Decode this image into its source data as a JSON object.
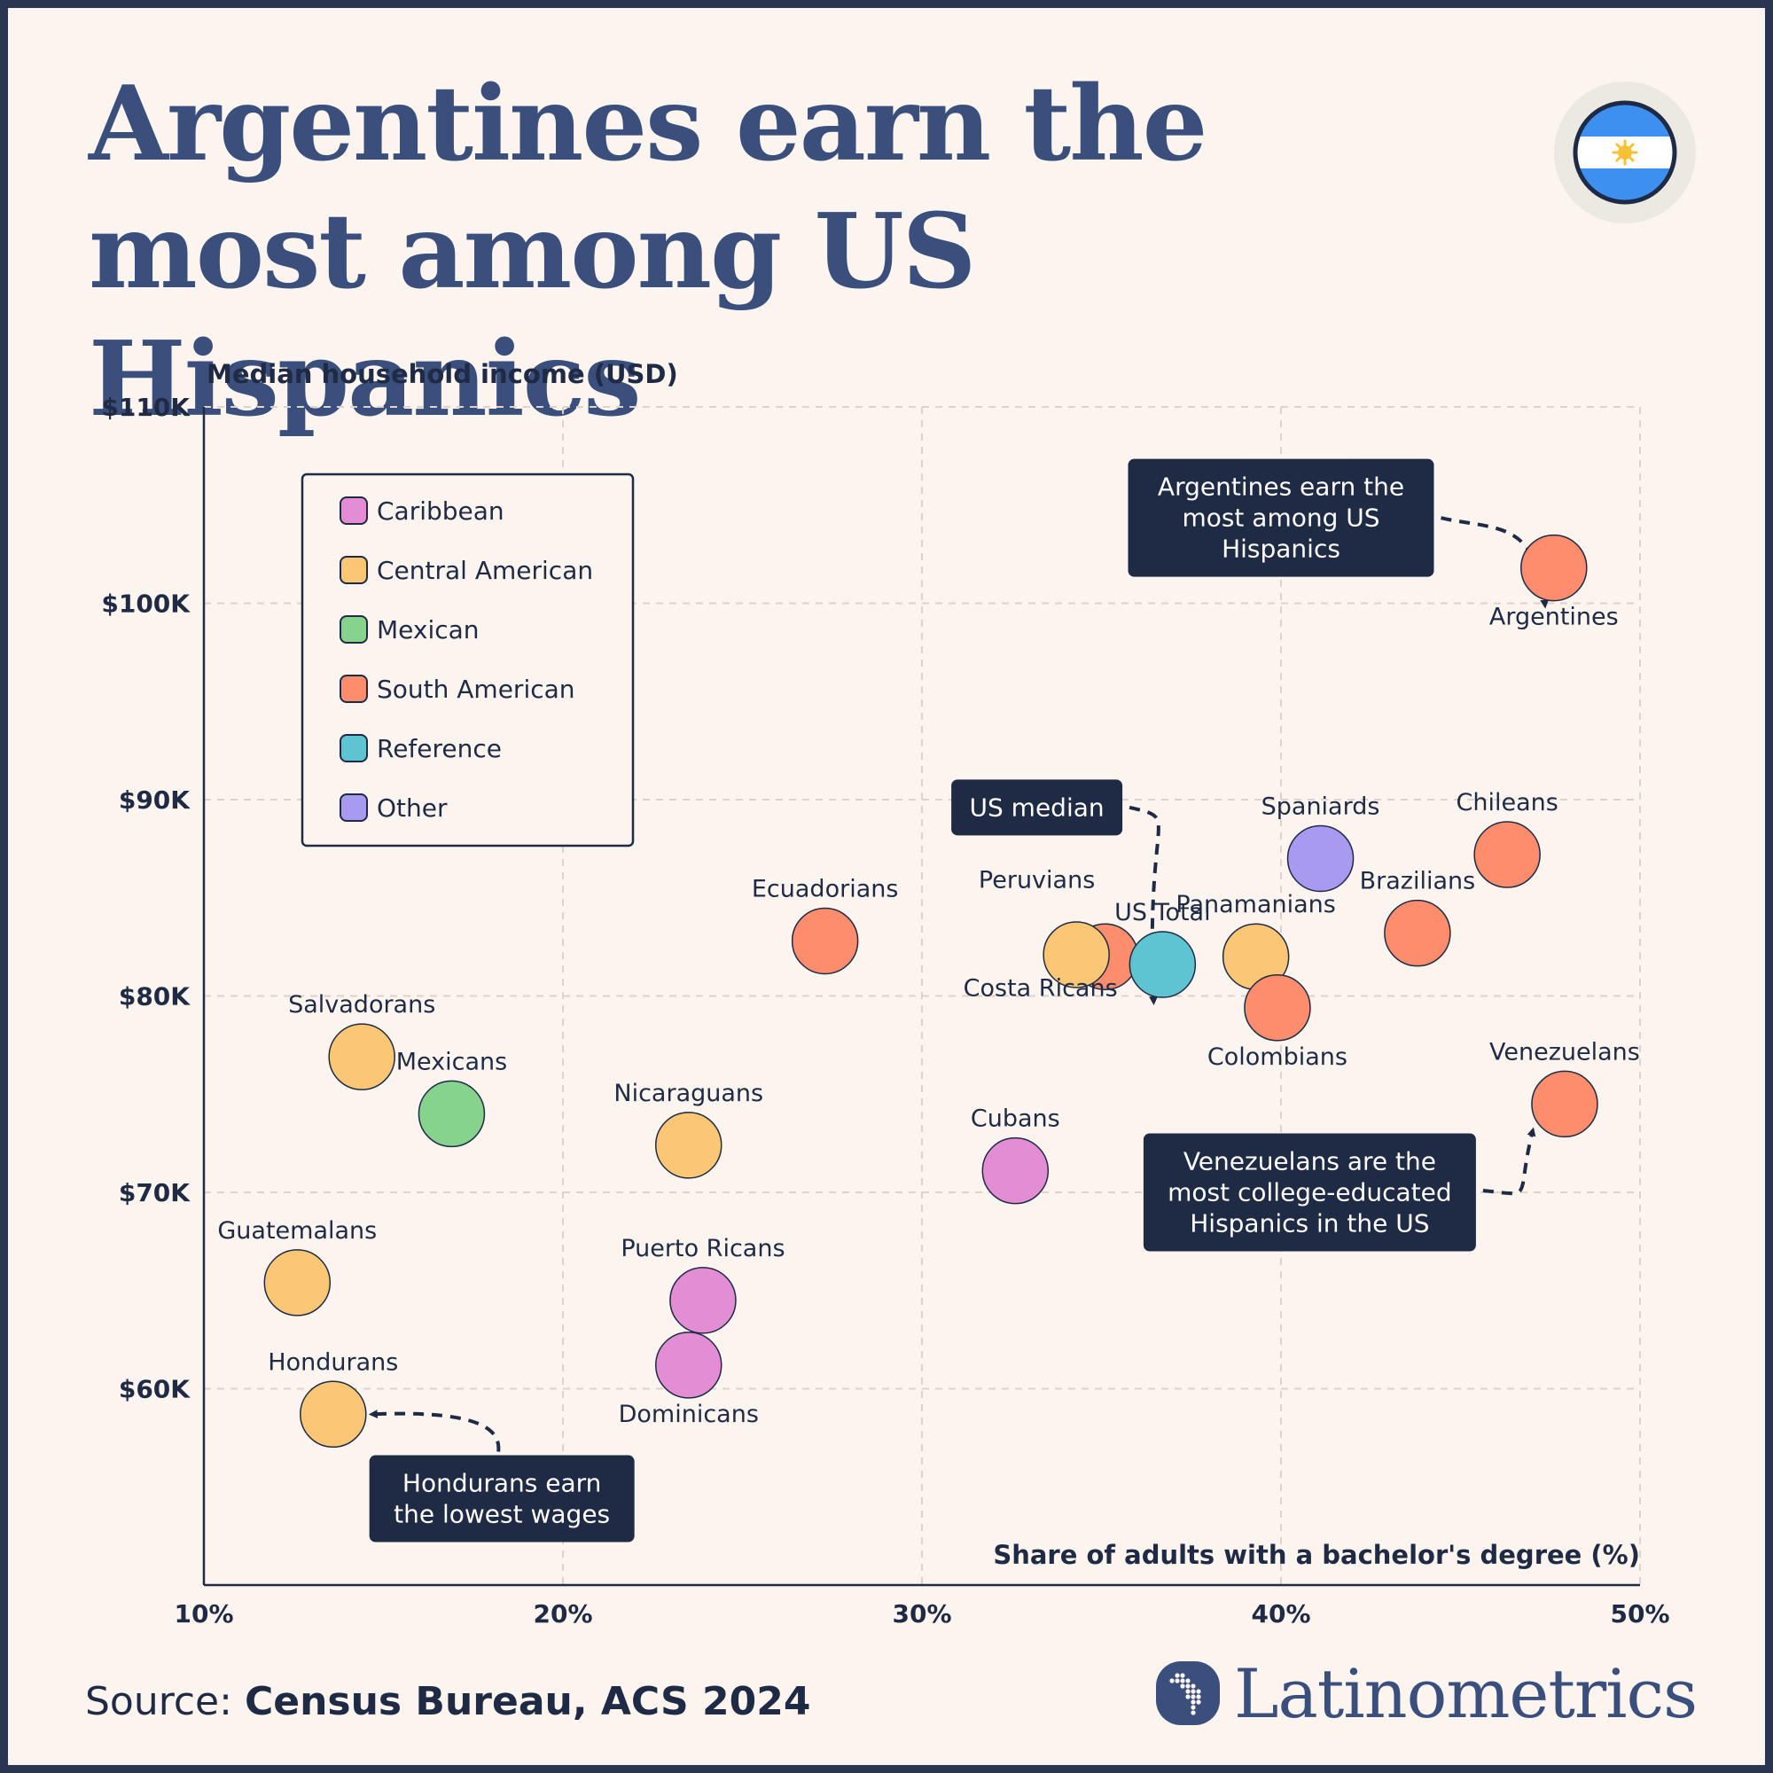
{
  "title": "Argentines earn the most among US Hispanics",
  "source": {
    "prefix": "Source:",
    "text": "Census Bureau, ACS 2024"
  },
  "brand": "Latinometrics",
  "flag_icon": "argentina-flag-icon",
  "colors": {
    "background": "#fcf5ef",
    "title": "#3b4f7c",
    "Caribbean": "#e38dd4",
    "Central American": "#fcc774",
    "Mexican": "#86d38d",
    "South American": "#fd8d6d",
    "Reference": "#5ec4d1",
    "Other": "#a89af0",
    "annotation_bg": "#1f2a44"
  },
  "chart_data": {
    "type": "scatter",
    "xlabel": "Share of adults with a bachelor's degree (%)",
    "ylabel": "Median household income (USD)",
    "xlim": [
      10,
      50
    ],
    "ylim": [
      50000,
      110000
    ],
    "x_ticks": [
      {
        "value": 10,
        "label": "10%"
      },
      {
        "value": 20,
        "label": "20%"
      },
      {
        "value": 30,
        "label": "30%"
      },
      {
        "value": 40,
        "label": "40%"
      },
      {
        "value": 50,
        "label": "50%"
      }
    ],
    "y_ticks": [
      {
        "value": 60000,
        "label": "$60K"
      },
      {
        "value": 70000,
        "label": "$70K"
      },
      {
        "value": 80000,
        "label": "$80K"
      },
      {
        "value": 90000,
        "label": "$90K"
      },
      {
        "value": 100000,
        "label": "$100K"
      },
      {
        "value": 110000,
        "label": "$110K"
      }
    ],
    "grid": true,
    "legend": {
      "placement": "top-left",
      "entries": [
        "Caribbean",
        "Central American",
        "Mexican",
        "South American",
        "Reference",
        "Other"
      ]
    },
    "points": [
      {
        "label": "Argentines",
        "group": "South American",
        "x": 47.6,
        "y": 101800,
        "label_pos": "below"
      },
      {
        "label": "Chileans",
        "group": "South American",
        "x": 46.3,
        "y": 87200,
        "label_pos": "above"
      },
      {
        "label": "Brazilians",
        "group": "South American",
        "x": 43.8,
        "y": 83200,
        "label_pos": "above"
      },
      {
        "label": "Venezuelans",
        "group": "South American",
        "x": 47.9,
        "y": 74500,
        "label_pos": "above"
      },
      {
        "label": "Spaniards",
        "group": "Other",
        "x": 41.1,
        "y": 87000,
        "label_pos": "above"
      },
      {
        "label": "Panamanians",
        "group": "Central American",
        "x": 39.3,
        "y": 82000,
        "label_pos": "above"
      },
      {
        "label": "Colombians",
        "group": "South American",
        "x": 39.9,
        "y": 79400,
        "label_pos": "below"
      },
      {
        "label": "Peruvians",
        "group": "South American",
        "x": 35.1,
        "y": 82000,
        "label_pos": "none"
      },
      {
        "label": "Costa Ricans",
        "group": "Central American",
        "x": 34.3,
        "y": 82100,
        "label_pos": "none"
      },
      {
        "label": "US Total",
        "group": "Reference",
        "x": 36.7,
        "y": 81600,
        "label_pos": "above"
      },
      {
        "label": "Ecuadorians",
        "group": "South American",
        "x": 27.3,
        "y": 82800,
        "label_pos": "above"
      },
      {
        "label": "Cubans",
        "group": "Caribbean",
        "x": 32.6,
        "y": 71100,
        "label_pos": "above"
      },
      {
        "label": "Nicaraguans",
        "group": "Central American",
        "x": 23.5,
        "y": 72400,
        "label_pos": "above"
      },
      {
        "label": "Puerto Ricans",
        "group": "Caribbean",
        "x": 23.9,
        "y": 64500,
        "label_pos": "above"
      },
      {
        "label": "Dominicans",
        "group": "Caribbean",
        "x": 23.5,
        "y": 61200,
        "label_pos": "below"
      },
      {
        "label": "Salvadorans",
        "group": "Central American",
        "x": 14.4,
        "y": 76900,
        "label_pos": "above"
      },
      {
        "label": "Mexicans",
        "group": "Mexican",
        "x": 16.9,
        "y": 74000,
        "label_pos": "above"
      },
      {
        "label": "Guatemalans",
        "group": "Central American",
        "x": 12.6,
        "y": 65400,
        "label_pos": "above"
      },
      {
        "label": "Hondurans",
        "group": "Central American",
        "x": 13.6,
        "y": 58700,
        "label_pos": "above"
      }
    ],
    "free_labels": [
      {
        "text": "Peruvians",
        "x": 33.2,
        "y": 85500
      },
      {
        "text": "Costa Ricans",
        "x": 33.3,
        "y": 80000
      }
    ],
    "annotations": [
      {
        "text": [
          "Argentines earn the",
          "most among US",
          "Hispanics"
        ],
        "x": 40,
        "y": 104350,
        "points_to": "Argentines"
      },
      {
        "text": [
          "US median"
        ],
        "x": 33.2,
        "y": 89600,
        "points_to": "US Total"
      },
      {
        "text": [
          "Venezuelans are the",
          "most college-educated",
          "Hispanics in the US"
        ],
        "x": 40.8,
        "y": 70000,
        "points_to": "Venezuelans"
      },
      {
        "text": [
          "Hondurans earn",
          "the lowest wages"
        ],
        "x": 18.3,
        "y": 54400,
        "points_to": "Hondurans"
      }
    ]
  }
}
